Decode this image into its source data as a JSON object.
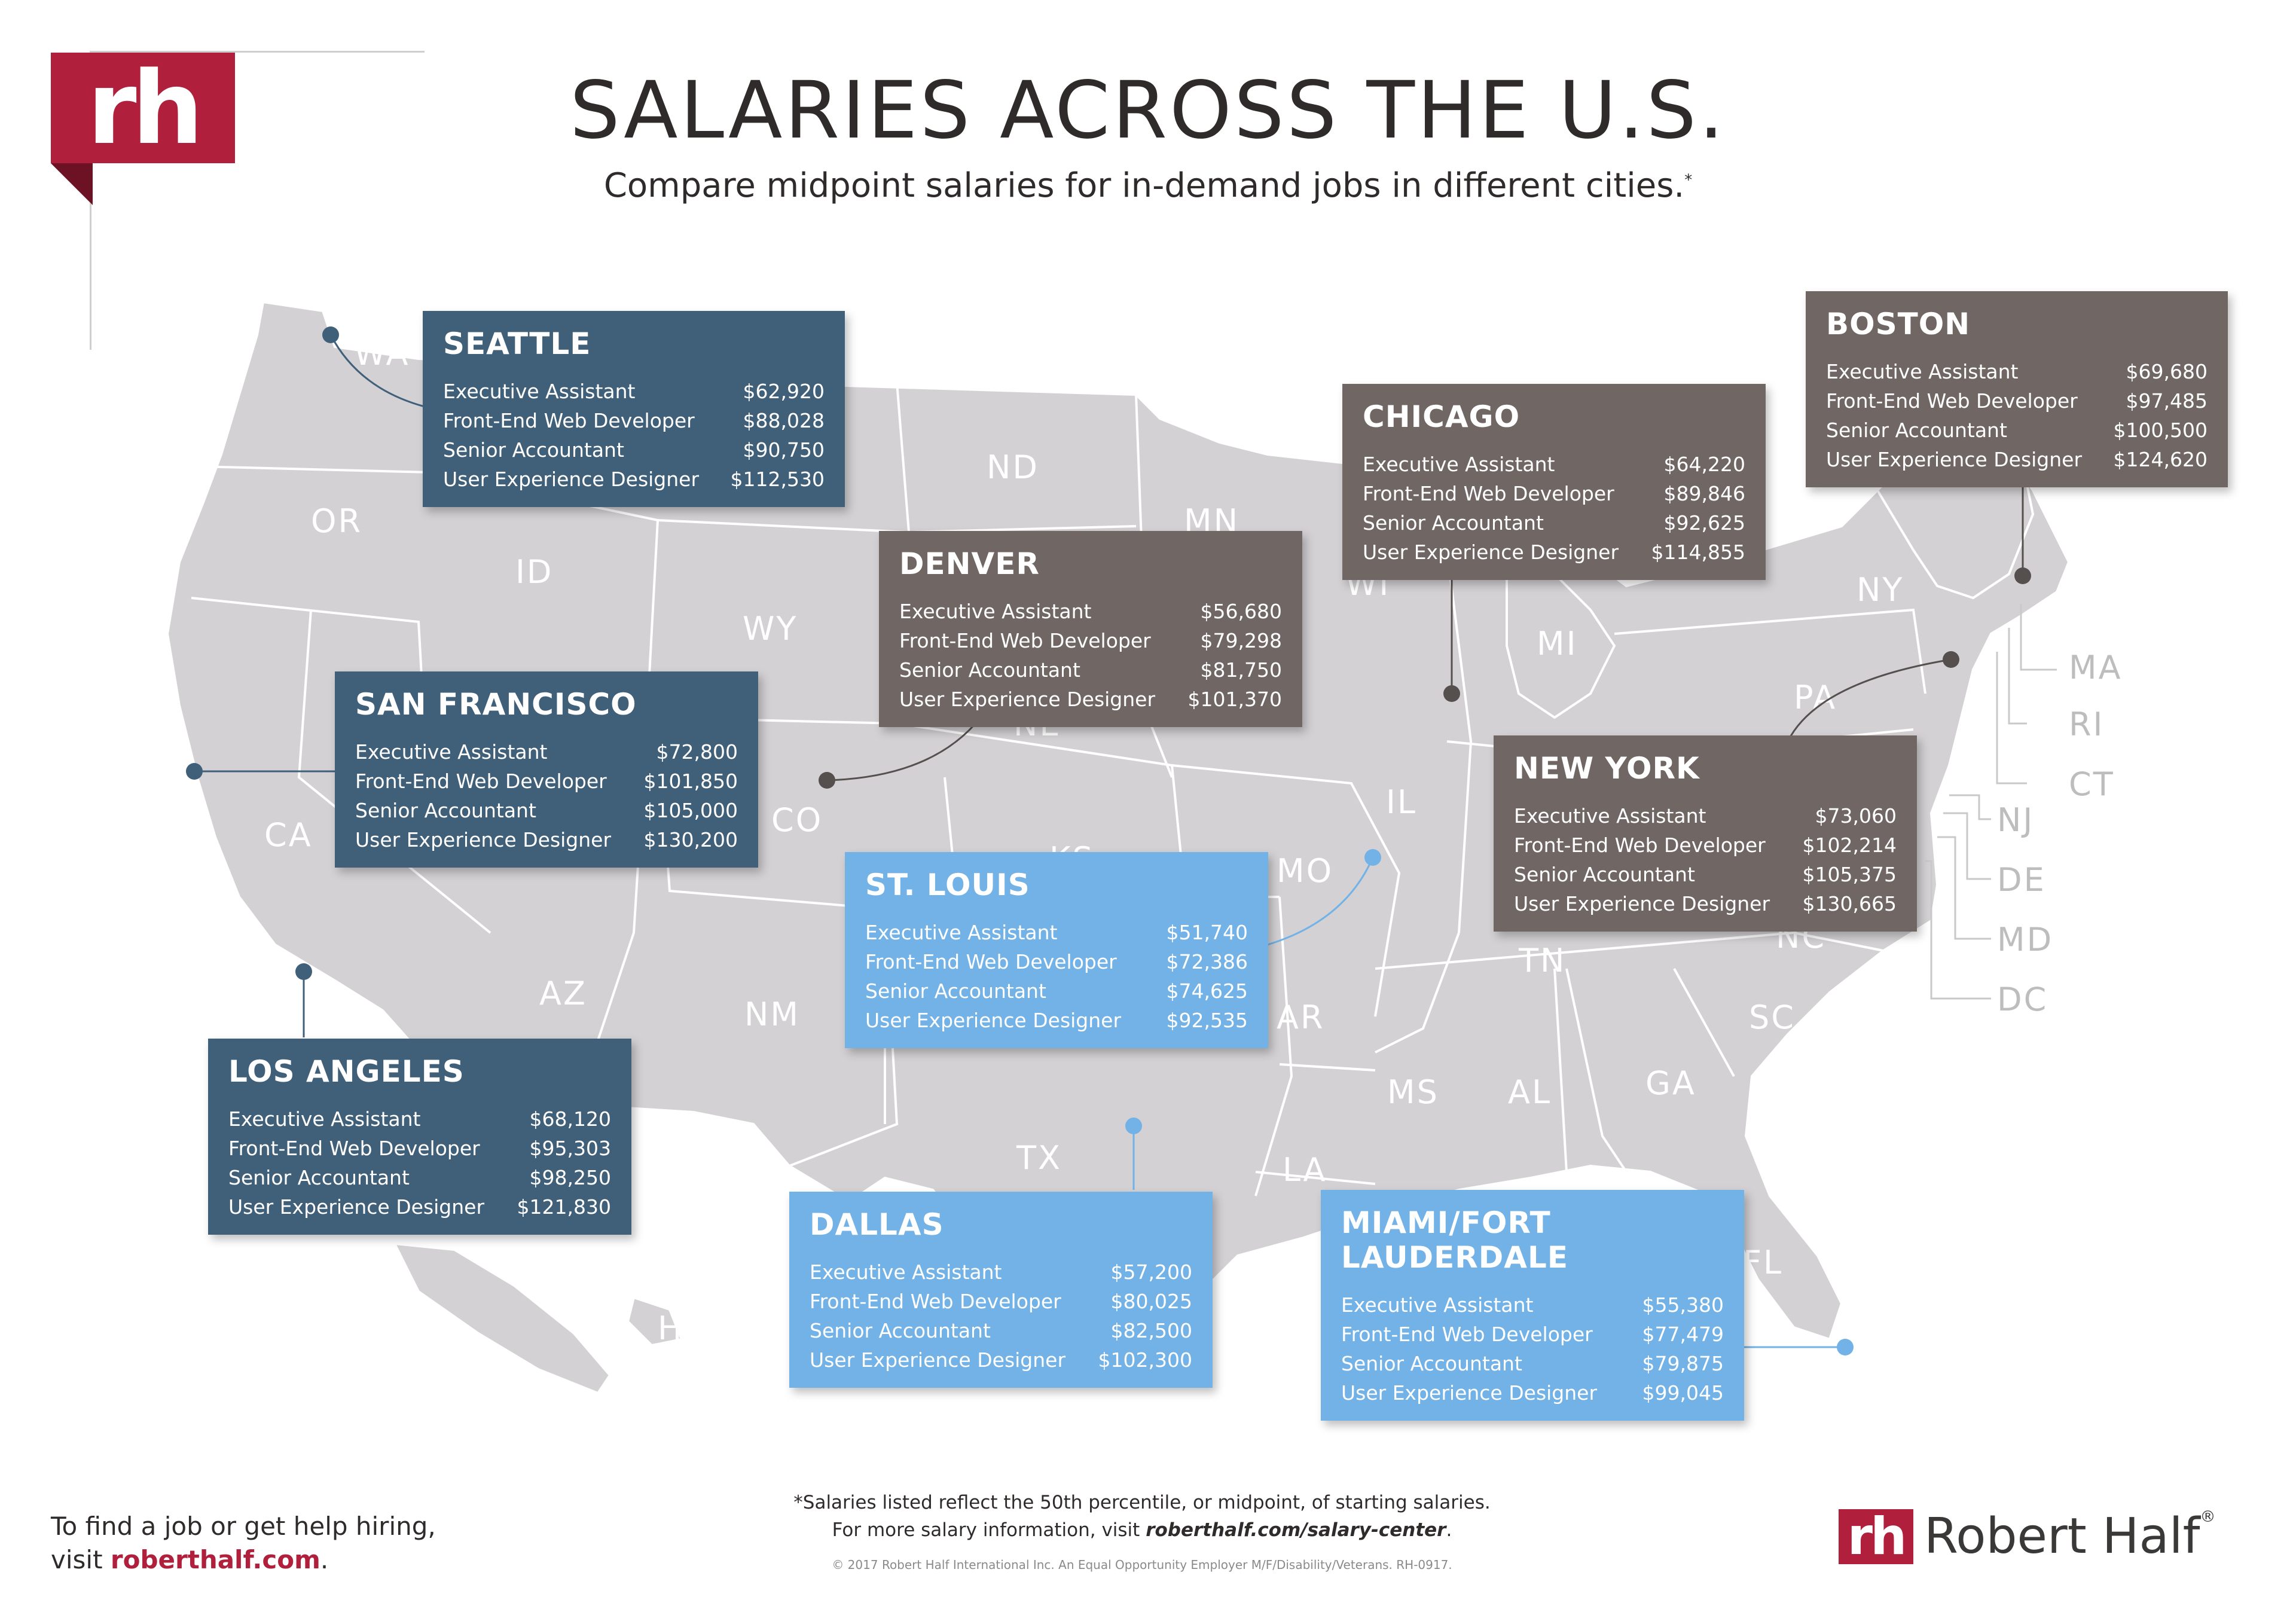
{
  "logo_text": "rh",
  "title": "SALARIES ACROSS THE U.S.",
  "subtitle": "Compare midpoint salaries for in-demand jobs in different cities.",
  "subtitle_mark": "*",
  "states": [
    "WA",
    "OR",
    "CA",
    "ID",
    "WY",
    "AZ",
    "NM",
    "CO",
    "ND",
    "MN",
    "NE",
    "KS",
    "MO",
    "IL",
    "WI",
    "MI",
    "NY",
    "PA",
    "TN",
    "NC",
    "SC",
    "GA",
    "AL",
    "MS",
    "LA",
    "AR",
    "TX",
    "FL",
    "HI"
  ],
  "state_labels": {
    "WA": "WA",
    "OR": "OR",
    "CA": "CA",
    "ID": "ID",
    "WY": "WY",
    "AZ": "AZ",
    "NM": "NM",
    "CO": "CO",
    "ND": "ND",
    "MN": "MN",
    "NE": "NE",
    "KS": "KS",
    "MO": "MO",
    "IL": "IL",
    "WI": "WI",
    "MI": "MI",
    "NY": "NY",
    "PA": "PA",
    "TN": "TN",
    "NC": "NC",
    "SC": "SC",
    "GA": "GA",
    "AL": "AL",
    "MS": "MS",
    "LA": "LA",
    "AR": "AR",
    "TX": "TX",
    "FL": "FL",
    "HI": "HI"
  },
  "outside_labels": {
    "MA": "MA",
    "RI": "RI",
    "CT": "CT",
    "NJ": "NJ",
    "DE": "DE",
    "MD": "MD",
    "DC": "DC"
  },
  "cities": {
    "seattle": {
      "name": "SEATTLE",
      "jobs": [
        [
          "Executive Assistant",
          "$62,920"
        ],
        [
          "Front-End Web Developer",
          "$88,028"
        ],
        [
          "Senior Accountant",
          "$90,750"
        ],
        [
          "User Experience Designer",
          "$112,530"
        ]
      ]
    },
    "san_francisco": {
      "name": "SAN FRANCISCO",
      "jobs": [
        [
          "Executive Assistant",
          "$72,800"
        ],
        [
          "Front-End Web Developer",
          "$101,850"
        ],
        [
          "Senior Accountant",
          "$105,000"
        ],
        [
          "User Experience Designer",
          "$130,200"
        ]
      ]
    },
    "los_angeles": {
      "name": "LOS ANGELES",
      "jobs": [
        [
          "Executive Assistant",
          "$68,120"
        ],
        [
          "Front-End Web Developer",
          "$95,303"
        ],
        [
          "Senior Accountant",
          "$98,250"
        ],
        [
          "User Experience Designer",
          "$121,830"
        ]
      ]
    },
    "denver": {
      "name": "DENVER",
      "jobs": [
        [
          "Executive Assistant",
          "$56,680"
        ],
        [
          "Front-End Web Developer",
          "$79,298"
        ],
        [
          "Senior Accountant",
          "$81,750"
        ],
        [
          "User Experience Designer",
          "$101,370"
        ]
      ]
    },
    "chicago": {
      "name": "CHICAGO",
      "jobs": [
        [
          "Executive Assistant",
          "$64,220"
        ],
        [
          "Front-End Web Developer",
          "$89,846"
        ],
        [
          "Senior Accountant",
          "$92,625"
        ],
        [
          "User Experience Designer",
          "$114,855"
        ]
      ]
    },
    "boston": {
      "name": "BOSTON",
      "jobs": [
        [
          "Executive Assistant",
          "$69,680"
        ],
        [
          "Front-End Web Developer",
          "$97,485"
        ],
        [
          "Senior Accountant",
          "$100,500"
        ],
        [
          "User Experience Designer",
          "$124,620"
        ]
      ]
    },
    "new_york": {
      "name": "NEW YORK",
      "jobs": [
        [
          "Executive Assistant",
          "$73,060"
        ],
        [
          "Front-End Web Developer",
          "$102,214"
        ],
        [
          "Senior Accountant",
          "$105,375"
        ],
        [
          "User Experience Designer",
          "$130,665"
        ]
      ]
    },
    "st_louis": {
      "name": "ST. LOUIS",
      "jobs": [
        [
          "Executive Assistant",
          "$51,740"
        ],
        [
          "Front-End Web Developer",
          "$72,386"
        ],
        [
          "Senior Accountant",
          "$74,625"
        ],
        [
          "User Experience Designer",
          "$92,535"
        ]
      ]
    },
    "dallas": {
      "name": "DALLAS",
      "jobs": [
        [
          "Executive Assistant",
          "$57,200"
        ],
        [
          "Front-End Web Developer",
          "$80,025"
        ],
        [
          "Senior Accountant",
          "$82,500"
        ],
        [
          "User Experience Designer",
          "$102,300"
        ]
      ]
    },
    "miami": {
      "name": "MIAMI/FORT LAUDERDALE",
      "jobs": [
        [
          "Executive Assistant",
          "$55,380"
        ],
        [
          "Front-End Web Developer",
          "$77,479"
        ],
        [
          "Senior Accountant",
          "$79,875"
        ],
        [
          "User Experience Designer",
          "$99,045"
        ]
      ]
    }
  },
  "footer": {
    "left_line1": "To find a job or get help hiring,",
    "left_line2_prefix": "visit ",
    "left_link": "roberthalf.com",
    "left_suffix": ".",
    "note_line1": "*Salaries listed reflect the 50th percentile, or midpoint, of starting salaries.",
    "note_line2_prefix": "For more salary information, visit ",
    "note_link": "roberthalf.com/salary-center",
    "note_suffix": ".",
    "copyright": "© 2017 Robert Half International Inc. An Equal Opportunity Employer M/F/Disability/Veterans. RH-0917.",
    "brand_mark": "rh",
    "brand_name": "Robert Half",
    "brand_reg": "®"
  },
  "colors": {
    "brand": "#b01f3c",
    "map": "#d3d1d3",
    "blue": "#40607a",
    "brown": "#706765",
    "light": "#72b2e6"
  }
}
